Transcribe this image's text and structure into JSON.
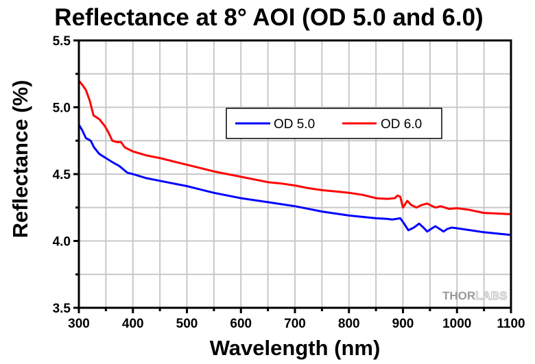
{
  "chart_data": {
    "type": "line",
    "title": "Reflectance at 8° AOI (OD 5.0 and 6.0)",
    "xlabel": "Wavelength (nm)",
    "ylabel": "Reflectance (%)",
    "xlim": [
      300,
      1100
    ],
    "ylim": [
      3.5,
      5.5
    ],
    "x_ticks": [
      300,
      400,
      500,
      600,
      700,
      800,
      900,
      1000,
      1100
    ],
    "x_tick_labels": [
      "300",
      "400",
      "500",
      "600",
      "700",
      "800",
      "900",
      "1000",
      "1100"
    ],
    "x_minor_step": 50,
    "y_ticks": [
      3.5,
      4.0,
      4.5,
      5.0,
      5.5
    ],
    "y_tick_labels": [
      "3.5",
      "4.0",
      "4.5",
      "5.0",
      "5.5"
    ],
    "y_minor_step": 0.25,
    "grid": true,
    "legend_position": "upper-center",
    "watermark": {
      "bold": "THOR",
      "outline": "LABS"
    },
    "series": [
      {
        "name": "OD 5.0",
        "color": "#0000ff",
        "x": [
          300,
          306,
          313,
          322,
          328,
          338,
          350,
          362,
          375,
          390,
          400,
          425,
          450,
          475,
          500,
          525,
          550,
          575,
          600,
          625,
          650,
          675,
          700,
          725,
          750,
          775,
          800,
          825,
          850,
          870,
          880,
          895,
          902,
          910,
          920,
          930,
          938,
          945,
          952,
          960,
          968,
          975,
          982,
          990,
          1000,
          1025,
          1050,
          1075,
          1100
        ],
        "values": [
          4.87,
          4.83,
          4.77,
          4.75,
          4.7,
          4.65,
          4.62,
          4.59,
          4.56,
          4.51,
          4.5,
          4.47,
          4.45,
          4.43,
          4.41,
          4.385,
          4.36,
          4.34,
          4.32,
          4.305,
          4.29,
          4.275,
          4.26,
          4.24,
          4.22,
          4.205,
          4.19,
          4.18,
          4.17,
          4.165,
          4.16,
          4.17,
          4.13,
          4.08,
          4.1,
          4.13,
          4.1,
          4.07,
          4.09,
          4.11,
          4.09,
          4.07,
          4.09,
          4.1,
          4.095,
          4.08,
          4.065,
          4.055,
          4.045
        ]
      },
      {
        "name": "OD 6.0",
        "color": "#ff0000",
        "x": [
          300,
          306,
          313,
          320,
          327,
          338,
          348,
          355,
          362,
          370,
          378,
          385,
          400,
          425,
          450,
          475,
          500,
          525,
          550,
          575,
          600,
          625,
          650,
          675,
          700,
          725,
          750,
          775,
          800,
          825,
          850,
          870,
          885,
          890,
          895,
          900,
          908,
          915,
          925,
          935,
          945,
          952,
          960,
          970,
          985,
          1000,
          1020,
          1050,
          1075,
          1100
        ],
        "values": [
          5.2,
          5.17,
          5.13,
          5.05,
          4.94,
          4.91,
          4.86,
          4.81,
          4.75,
          4.74,
          4.74,
          4.7,
          4.67,
          4.64,
          4.62,
          4.595,
          4.57,
          4.545,
          4.52,
          4.5,
          4.48,
          4.46,
          4.44,
          4.43,
          4.415,
          4.395,
          4.38,
          4.37,
          4.36,
          4.345,
          4.32,
          4.315,
          4.32,
          4.34,
          4.33,
          4.25,
          4.3,
          4.27,
          4.25,
          4.27,
          4.28,
          4.265,
          4.25,
          4.26,
          4.24,
          4.245,
          4.235,
          4.21,
          4.205,
          4.2
        ]
      }
    ]
  }
}
